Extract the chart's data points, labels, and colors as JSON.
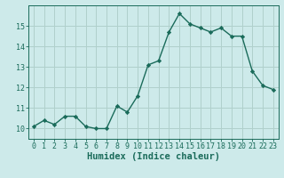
{
  "x": [
    0,
    1,
    2,
    3,
    4,
    5,
    6,
    7,
    8,
    9,
    10,
    11,
    12,
    13,
    14,
    15,
    16,
    17,
    18,
    19,
    20,
    21,
    22,
    23
  ],
  "y": [
    10.1,
    10.4,
    10.2,
    10.6,
    10.6,
    10.1,
    10.0,
    10.0,
    11.1,
    10.8,
    11.6,
    13.1,
    13.3,
    14.7,
    15.6,
    15.1,
    14.9,
    14.7,
    14.9,
    14.5,
    14.5,
    12.8,
    12.1,
    11.9
  ],
  "line_color": "#1a6b5a",
  "marker": "D",
  "marker_size": 2.2,
  "bg_color": "#cdeaea",
  "grid_color": "#b0d0cc",
  "tick_color": "#1a6b5a",
  "label_color": "#1a6b5a",
  "xlabel": "Humidex (Indice chaleur)",
  "ylim": [
    9.5,
    16.0
  ],
  "xlim": [
    -0.5,
    23.5
  ],
  "yticks": [
    10,
    11,
    12,
    13,
    14,
    15
  ],
  "xticks": [
    0,
    1,
    2,
    3,
    4,
    5,
    6,
    7,
    8,
    9,
    10,
    11,
    12,
    13,
    14,
    15,
    16,
    17,
    18,
    19,
    20,
    21,
    22,
    23
  ],
  "tick_fontsize": 6.0,
  "xlabel_fontsize": 7.5,
  "linewidth": 1.0
}
